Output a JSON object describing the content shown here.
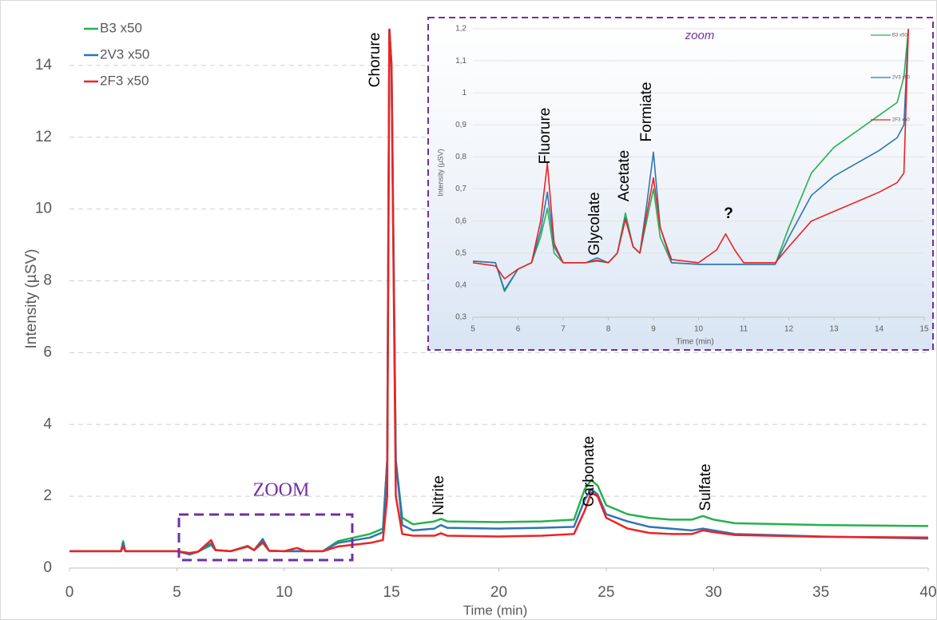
{
  "chart_data": [
    {
      "type": "line",
      "xlabel": "Time (min)",
      "ylabel": "Intensity (µSV)",
      "xlim": [
        0,
        40
      ],
      "xticks": [
        0,
        5,
        10,
        15,
        20,
        25,
        30,
        35,
        40
      ],
      "ylim": [
        0,
        15
      ],
      "yticks": [
        0,
        2,
        4,
        6,
        8,
        10,
        12,
        14
      ],
      "grid": true,
      "legend": "top-left",
      "annotations": [
        "Chorure",
        "Nitrite",
        "Carbonate",
        "Sulfate",
        "ZOOM"
      ],
      "x": [
        0,
        2.4,
        2.5,
        2.6,
        3,
        5,
        5.6,
        6,
        6.6,
        6.8,
        7.5,
        8.3,
        8.6,
        9,
        9.3,
        10,
        10.6,
        11,
        11.8,
        12.5,
        14,
        14.6,
        14.8,
        14.9,
        15.0,
        15.2,
        15.5,
        16,
        17,
        17.3,
        17.6,
        20,
        22,
        23.5,
        24,
        24.3,
        24.6,
        25,
        26,
        27,
        28,
        29,
        29.5,
        30,
        31,
        35,
        40
      ],
      "series": [
        {
          "name": "B3 x50",
          "color": "#27b04e",
          "values": [
            0.47,
            0.47,
            0.75,
            0.47,
            0.47,
            0.47,
            0.38,
            0.46,
            0.64,
            0.5,
            0.47,
            0.62,
            0.5,
            0.7,
            0.48,
            0.47,
            0.47,
            0.47,
            0.47,
            0.75,
            0.95,
            1.1,
            3,
            15,
            14,
            3,
            1.4,
            1.22,
            1.3,
            1.37,
            1.3,
            1.28,
            1.3,
            1.35,
            2.2,
            2.45,
            2.3,
            1.75,
            1.5,
            1.4,
            1.35,
            1.35,
            1.45,
            1.35,
            1.25,
            1.2,
            1.17
          ]
        },
        {
          "name": "2V3 x50",
          "color": "#2e75b6",
          "values": [
            0.47,
            0.47,
            0.7,
            0.47,
            0.47,
            0.47,
            0.38,
            0.46,
            0.69,
            0.5,
            0.47,
            0.6,
            0.5,
            0.81,
            0.48,
            0.47,
            0.47,
            0.47,
            0.47,
            0.7,
            0.85,
            1.0,
            3,
            15,
            14,
            3,
            1.2,
            1.05,
            1.1,
            1.2,
            1.12,
            1.1,
            1.12,
            1.15,
            1.9,
            2.2,
            2.05,
            1.5,
            1.3,
            1.15,
            1.1,
            1.05,
            1.1,
            1.05,
            0.95,
            0.88,
            0.82
          ]
        },
        {
          "name": "2F3 x50",
          "color": "#ee2222",
          "values": [
            0.47,
            0.47,
            0.6,
            0.47,
            0.47,
            0.47,
            0.42,
            0.46,
            0.78,
            0.5,
            0.47,
            0.6,
            0.5,
            0.73,
            0.48,
            0.47,
            0.56,
            0.47,
            0.47,
            0.6,
            0.7,
            0.78,
            2,
            15,
            14,
            2,
            0.95,
            0.9,
            0.9,
            0.97,
            0.9,
            0.88,
            0.9,
            0.95,
            1.6,
            2.1,
            2.0,
            1.4,
            1.1,
            0.98,
            0.95,
            0.95,
            1.05,
            1.0,
            0.92,
            0.87,
            0.85
          ]
        }
      ]
    },
    {
      "type": "line",
      "title": "zoom",
      "xlabel": "Time (min)",
      "ylabel": "Intensity (µSV)",
      "xlim": [
        5,
        15
      ],
      "xticks": [
        5,
        6,
        7,
        8,
        9,
        10,
        11,
        12,
        13,
        14,
        15
      ],
      "ylim": [
        0.3,
        1.2
      ],
      "yticks": [
        {
          "value": 0.3,
          "label": "0,3"
        },
        {
          "value": 0.4,
          "label": "0,4"
        },
        {
          "value": 0.5,
          "label": "0,5"
        },
        {
          "value": 0.6,
          "label": "0,6"
        },
        {
          "value": 0.7,
          "label": "0,7"
        },
        {
          "value": 0.8,
          "label": "0,8"
        },
        {
          "value": 0.9,
          "label": "0,9"
        },
        {
          "value": 1,
          "label": "1"
        },
        {
          "value": 1.1,
          "label": "1,1"
        },
        {
          "value": 1.2,
          "label": "1,2"
        }
      ],
      "grid": true,
      "legend": "top-right",
      "annotations": [
        "Fluorure",
        "Glycolate",
        "Acetate",
        "Formiate",
        "?"
      ],
      "x": [
        5,
        5.5,
        5.7,
        6,
        6.3,
        6.5,
        6.65,
        6.8,
        7,
        7.5,
        7.75,
        8,
        8.2,
        8.38,
        8.55,
        8.7,
        8.85,
        9.0,
        9.15,
        9.4,
        10,
        10.4,
        10.6,
        10.8,
        11,
        11.7,
        12,
        12.5,
        13,
        13.5,
        14,
        14.4,
        14.55,
        14.65
      ],
      "series": [
        {
          "name": "B3 x50",
          "color": "#27b04e",
          "values": [
            0.475,
            0.47,
            0.38,
            0.45,
            0.47,
            0.55,
            0.64,
            0.5,
            0.47,
            0.47,
            0.475,
            0.47,
            0.5,
            0.625,
            0.52,
            0.5,
            0.6,
            0.7,
            0.55,
            0.47,
            0.465,
            0.465,
            0.465,
            0.465,
            0.465,
            0.465,
            0.58,
            0.75,
            0.83,
            0.88,
            0.93,
            0.97,
            1.05,
            1.2
          ]
        },
        {
          "name": "2V3 x50",
          "color": "#2e75b6",
          "values": [
            0.475,
            0.47,
            0.385,
            0.45,
            0.47,
            0.57,
            0.69,
            0.52,
            0.47,
            0.47,
            0.485,
            0.47,
            0.5,
            0.61,
            0.52,
            0.5,
            0.65,
            0.815,
            0.58,
            0.47,
            0.465,
            0.465,
            0.465,
            0.465,
            0.465,
            0.465,
            0.55,
            0.68,
            0.74,
            0.78,
            0.82,
            0.86,
            0.9,
            1.2
          ]
        },
        {
          "name": "2F3 x50",
          "color": "#ee2222",
          "values": [
            0.47,
            0.46,
            0.42,
            0.45,
            0.47,
            0.6,
            0.78,
            0.53,
            0.47,
            0.47,
            0.478,
            0.47,
            0.5,
            0.605,
            0.52,
            0.5,
            0.62,
            0.735,
            0.58,
            0.48,
            0.47,
            0.51,
            0.56,
            0.51,
            0.47,
            0.47,
            0.52,
            0.6,
            0.63,
            0.66,
            0.69,
            0.72,
            0.75,
            1.2
          ]
        }
      ]
    }
  ]
}
